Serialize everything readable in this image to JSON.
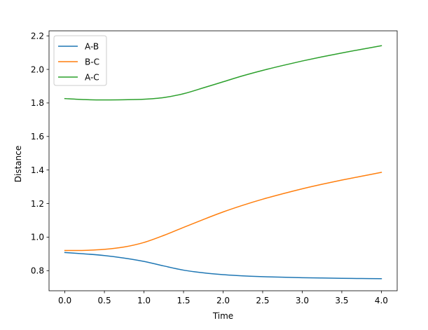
{
  "chart_data": {
    "type": "line",
    "title": "",
    "xlabel": "Time",
    "ylabel": "Distance",
    "xlim": [
      -0.2,
      4.2
    ],
    "ylim": [
      0.68,
      2.23
    ],
    "xticks": [
      0.0,
      0.5,
      1.0,
      1.5,
      2.0,
      2.5,
      3.0,
      3.5,
      4.0
    ],
    "xtick_labels": [
      "0.0",
      "0.5",
      "1.0",
      "1.5",
      "2.0",
      "2.5",
      "3.0",
      "3.5",
      "4.0"
    ],
    "yticks": [
      0.8,
      1.0,
      1.2,
      1.4,
      1.6,
      1.8,
      2.0,
      2.2
    ],
    "ytick_labels": [
      "0.8",
      "1.0",
      "1.2",
      "1.4",
      "1.6",
      "1.8",
      "2.0",
      "2.2"
    ],
    "grid": false,
    "legend_position": "top-left",
    "x": [
      0.0,
      0.25,
      0.5,
      0.75,
      1.0,
      1.25,
      1.5,
      1.75,
      2.0,
      2.25,
      2.5,
      2.75,
      3.0,
      3.25,
      3.5,
      3.75,
      4.0
    ],
    "series": [
      {
        "name": "A-B",
        "color": "#1f77b4",
        "values": [
          0.908,
          0.9,
          0.89,
          0.875,
          0.855,
          0.828,
          0.803,
          0.787,
          0.776,
          0.769,
          0.764,
          0.761,
          0.758,
          0.756,
          0.754,
          0.753,
          0.752
        ]
      },
      {
        "name": "B-C",
        "color": "#ff7f0e",
        "values": [
          0.92,
          0.921,
          0.927,
          0.941,
          0.968,
          1.01,
          1.058,
          1.105,
          1.15,
          1.19,
          1.226,
          1.258,
          1.288,
          1.315,
          1.34,
          1.363,
          1.386
        ]
      },
      {
        "name": "A-C",
        "color": "#2ca02c",
        "values": [
          1.826,
          1.82,
          1.818,
          1.819,
          1.822,
          1.832,
          1.855,
          1.89,
          1.926,
          1.962,
          1.994,
          2.023,
          2.05,
          2.075,
          2.098,
          2.12,
          2.141
        ]
      }
    ]
  }
}
